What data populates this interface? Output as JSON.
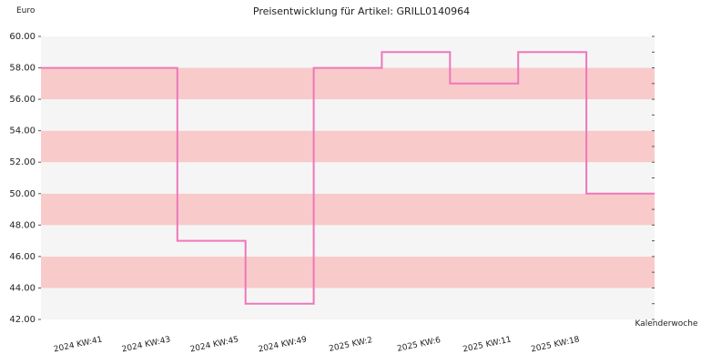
{
  "chart_data": {
    "type": "line",
    "step": true,
    "title": "Preisentwicklung für Artikel: GRILL0140964",
    "ylabel": "Euro",
    "xlabel": "Kalenderwoche",
    "ylim": [
      42.0,
      60.0
    ],
    "yticks": [
      "42.00",
      "44.00",
      "46.00",
      "48.00",
      "50.00",
      "52.00",
      "54.00",
      "56.00",
      "58.00",
      "60.00"
    ],
    "xticks": [
      "2024 KW:41",
      "2024 KW:43",
      "2024 KW:45",
      "2024 KW:49",
      "2025 KW:2",
      "2025 KW:6",
      "2025 KW:11",
      "2025 KW:18"
    ],
    "series": [
      {
        "color": "#ee77bb",
        "values": [
          58,
          58,
          47,
          43,
          58,
          59,
          57,
          59,
          50
        ]
      }
    ],
    "band_colors": [
      "#f5f5f5",
      "#f8caca"
    ],
    "grid": "alternating horizontal bands"
  }
}
